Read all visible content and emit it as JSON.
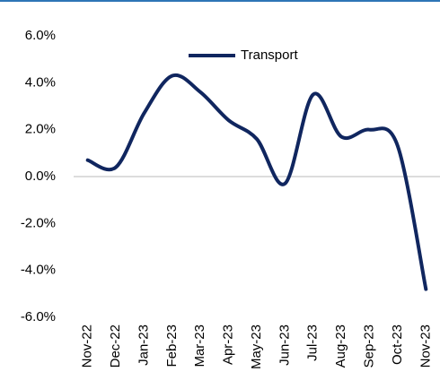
{
  "chart_data": {
    "type": "line",
    "categories": [
      "Nov-22",
      "Dec-22",
      "Jan-23",
      "Feb-23",
      "Mar-23",
      "Apr-23",
      "May-23",
      "Jun-23",
      "Jul-23",
      "Aug-23",
      "Sep-23",
      "Oct-23",
      "Nov-23"
    ],
    "series": [
      {
        "name": "Transport",
        "color": "#10265f",
        "values": [
          0.7,
          0.4,
          2.7,
          4.3,
          3.6,
          2.4,
          1.6,
          -0.3,
          3.5,
          1.7,
          2.0,
          1.3,
          -4.8
        ]
      }
    ],
    "ylim": [
      -6,
      6
    ],
    "yticks": [
      {
        "value": 6,
        "label": "6.0%"
      },
      {
        "value": 4,
        "label": "4.0%"
      },
      {
        "value": 2,
        "label": "2.0%"
      },
      {
        "value": 0,
        "label": "0.0%"
      },
      {
        "value": -2,
        "label": "-2.0%"
      },
      {
        "value": -4,
        "label": "-4.0%"
      },
      {
        "value": -6,
        "label": "-6.0%"
      }
    ],
    "legend": "top"
  }
}
